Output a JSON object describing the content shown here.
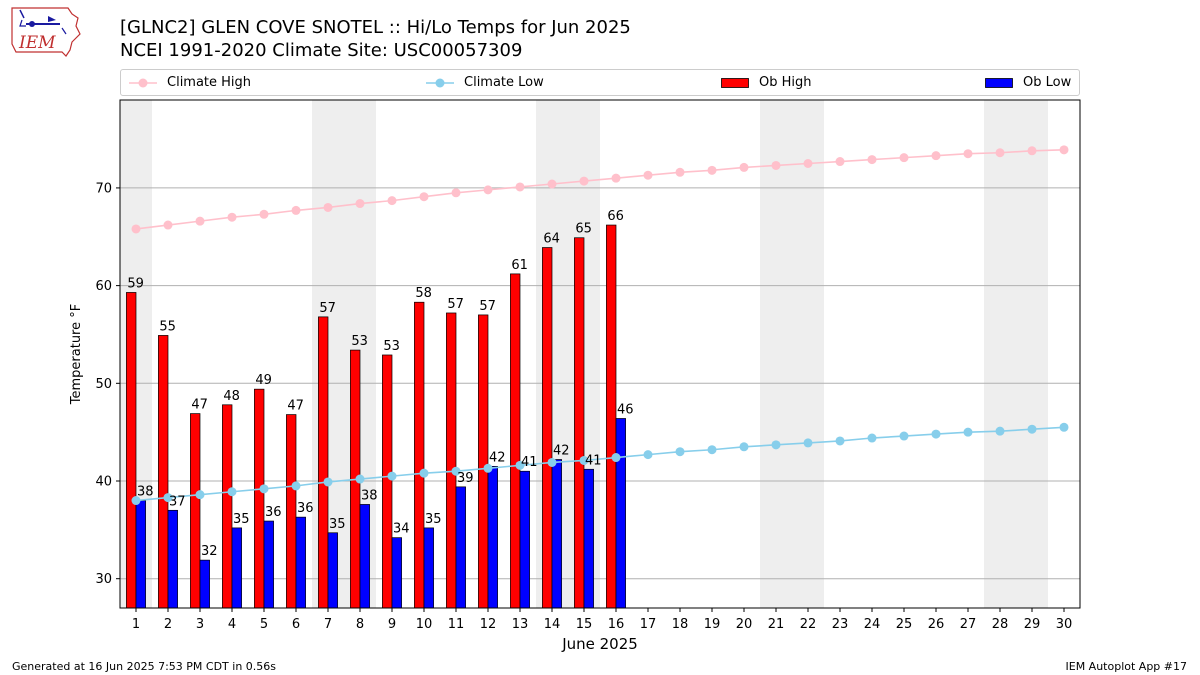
{
  "header": {
    "title_line1": "[GLNC2] GLEN COVE SNOTEL :: Hi/Lo Temps for Jun 2025",
    "title_line2": "NCEI 1991-2020 Climate Site: USC00057309",
    "logo_text": "IEM"
  },
  "legend": {
    "climate_high": "Climate High",
    "climate_low": "Climate Low",
    "ob_high": "Ob High",
    "ob_low": "Ob Low"
  },
  "colors": {
    "climate_high": "#ffc0cb",
    "climate_low": "#87ceeb",
    "ob_high": "#ff0000",
    "ob_low": "#0000ff",
    "weekend_shade": "#eeeeee",
    "grid": "#b0b0b0"
  },
  "chart_data": {
    "type": "bar",
    "xlabel": "June 2025",
    "ylabel": "Temperature °F",
    "ylim": [
      27,
      79
    ],
    "xlim": [
      0.5,
      30.5
    ],
    "yticks": [
      30,
      40,
      50,
      60,
      70
    ],
    "grid": "horizontal",
    "legend_position": "top",
    "weekend_days": [
      1,
      7,
      8,
      14,
      15,
      21,
      22,
      28,
      29
    ],
    "days": [
      1,
      2,
      3,
      4,
      5,
      6,
      7,
      8,
      9,
      10,
      11,
      12,
      13,
      14,
      15,
      16,
      17,
      18,
      19,
      20,
      21,
      22,
      23,
      24,
      25,
      26,
      27,
      28,
      29,
      30
    ],
    "series": [
      {
        "name": "Ob High",
        "kind": "bar",
        "values": [
          59.3,
          54.9,
          46.9,
          47.8,
          49.4,
          46.8,
          56.8,
          53.4,
          52.9,
          58.3,
          57.2,
          57.0,
          61.2,
          63.9,
          64.9,
          66.2
        ]
      },
      {
        "name": "Ob Low",
        "kind": "bar",
        "values": [
          38.0,
          37.0,
          31.9,
          35.2,
          35.9,
          36.3,
          34.7,
          37.6,
          34.2,
          35.2,
          39.4,
          41.5,
          41.0,
          42.2,
          41.2,
          46.4
        ]
      },
      {
        "name": "Climate High",
        "kind": "line",
        "values": [
          65.8,
          66.2,
          66.6,
          67.0,
          67.3,
          67.7,
          68.0,
          68.4,
          68.7,
          69.1,
          69.5,
          69.8,
          70.1,
          70.4,
          70.7,
          71.0,
          71.3,
          71.6,
          71.8,
          72.1,
          72.3,
          72.5,
          72.7,
          72.9,
          73.1,
          73.3,
          73.5,
          73.6,
          73.8,
          73.9
        ]
      },
      {
        "name": "Climate Low",
        "kind": "line",
        "values": [
          38.0,
          38.3,
          38.6,
          38.9,
          39.2,
          39.5,
          39.9,
          40.2,
          40.5,
          40.8,
          41.0,
          41.3,
          41.6,
          41.9,
          42.1,
          42.4,
          42.7,
          43.0,
          43.2,
          43.5,
          43.7,
          43.9,
          44.1,
          44.4,
          44.6,
          44.8,
          45.0,
          45.1,
          45.3,
          45.5
        ]
      }
    ],
    "data_labels": {
      "ob_high": [
        "59",
        "55",
        "47",
        "48",
        "49",
        "47",
        "57",
        "53",
        "53",
        "58",
        "57",
        "57",
        "61",
        "64",
        "65",
        "66"
      ],
      "ob_low": [
        "38",
        "37",
        "32",
        "35",
        "36",
        "36",
        "35",
        "38",
        "34",
        "35",
        "39",
        "42",
        "41",
        "42",
        "41",
        "46"
      ]
    }
  },
  "footer": {
    "left": "Generated at 16 Jun 2025 7:53 PM CDT in 0.56s",
    "right": "IEM Autoplot App #17"
  }
}
